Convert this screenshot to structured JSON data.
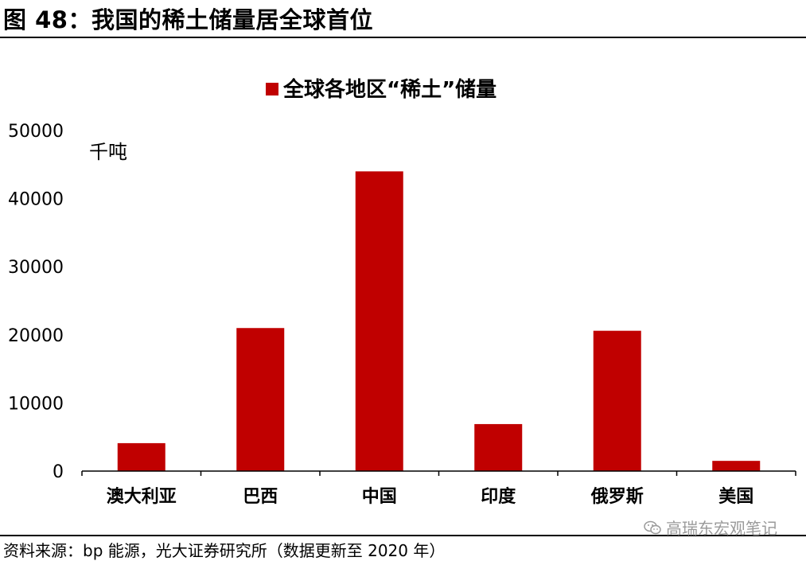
{
  "figure": {
    "title": "图 48：我国的稀土储量居全球首位",
    "source": "资料来源：bp 能源，光大证券研究所（数据更新至 2020 年）",
    "watermark": "高瑞东宏观笔记",
    "watermark_icon": "wechat-icon"
  },
  "colors": {
    "bar": "#C00000",
    "axis": "#000000",
    "watermark": "#9a9a9a"
  },
  "chart_data": {
    "type": "bar",
    "title": "",
    "unit_label": "千吨",
    "categories": [
      "澳大利亚",
      "巴西",
      "中国",
      "印度",
      "俄罗斯",
      "美国"
    ],
    "series": [
      {
        "name": "全球各地区“稀土”储量",
        "values": [
          4100,
          21000,
          44000,
          6900,
          20600,
          1500
        ]
      }
    ],
    "ylim": [
      0,
      50000
    ],
    "yticks": [
      "0",
      "10000",
      "20000",
      "30000",
      "40000",
      "50000"
    ],
    "grid": false,
    "legend": "top-center"
  }
}
